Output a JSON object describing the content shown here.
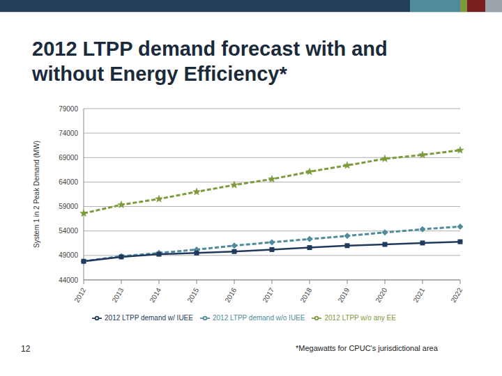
{
  "chart_data": {
    "type": "line",
    "title": "2012 LTPP demand forecast with and without Energy Efficiency*",
    "y_label": "System 1 in 2 Peak Demand (MW)",
    "annotations": [
      "*Megawatts for CPUC's jurisdictional area",
      "12"
    ],
    "categories": [
      "2012",
      "2013",
      "2014",
      "2015",
      "2016",
      "2017",
      "2018",
      "2019",
      "2020",
      "2021",
      "2022"
    ],
    "series": [
      {
        "name": "2012 LTPP demand w/o IUEE",
        "color": "#4f8b9c",
        "marker": "diamond",
        "line_style": "dashed",
        "values": [
          47800,
          48850,
          49500,
          50200,
          51000,
          51700,
          52350,
          53000,
          53700,
          54350,
          54900
        ]
      },
      {
        "name": "2012 LTPP demand w/ IUEE",
        "color": "#1f3a5c",
        "marker": "square",
        "line_style": "solid",
        "values": [
          47800,
          48700,
          49250,
          49500,
          49800,
          50200,
          50600,
          51000,
          51250,
          51550,
          51800
        ]
      },
      {
        "name": "2012 LTPP w/o any EE",
        "color": "#7d9a3c",
        "marker": "star",
        "line_style": "dashed",
        "values": [
          57600,
          59350,
          60550,
          62000,
          63400,
          64600,
          66100,
          67400,
          68750,
          69550,
          70500
        ]
      }
    ],
    "ylim": [
      44000,
      79000
    ],
    "yticks": [
      44000,
      49000,
      54000,
      59000,
      64000,
      69000,
      74000,
      79000
    ],
    "grid": true,
    "legend": "bottom",
    "data_labels": false
  }
}
